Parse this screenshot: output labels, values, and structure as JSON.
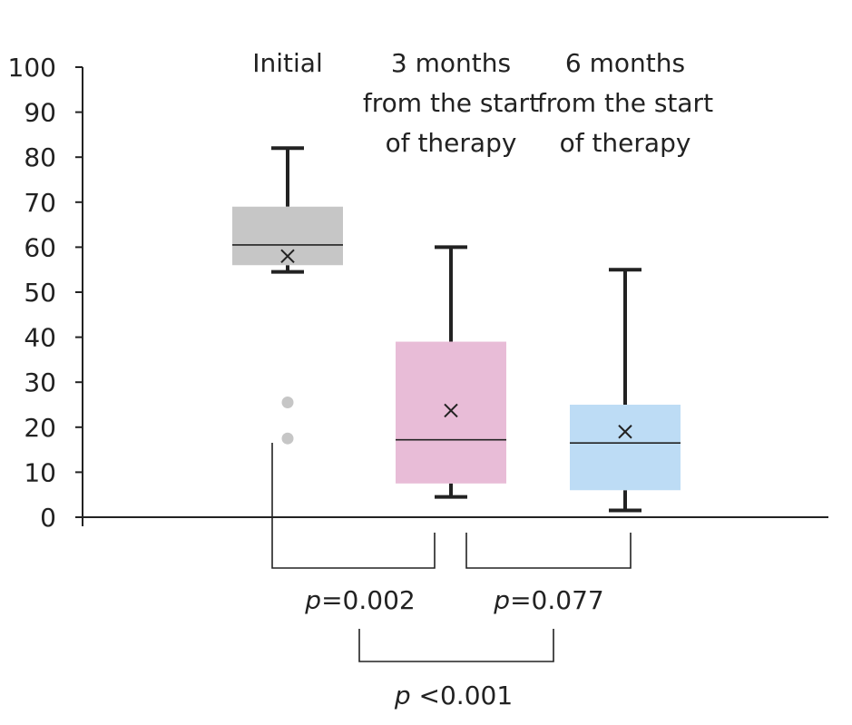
{
  "chart_data": {
    "type": "box",
    "title": "",
    "xlabel": "",
    "ylabel": "",
    "ylim": [
      0,
      100
    ],
    "yticks": [
      0,
      10,
      20,
      30,
      40,
      50,
      60,
      70,
      80,
      90,
      100
    ],
    "groups": [
      {
        "label_lines": [
          "Initial"
        ],
        "color": "#c6c6c6",
        "whisker_low": 54.5,
        "q1": 56,
        "median": 60.5,
        "mean": 58,
        "q3": 69,
        "whisker_high": 82,
        "outliers": [
          17.5,
          25.5
        ],
        "outlier_color": "#c6c6c6"
      },
      {
        "label_lines": [
          "3 months",
          "from the start",
          "of therapy"
        ],
        "color": "#e8bcd7",
        "whisker_low": 4.5,
        "q1": 7.5,
        "median": 17.2,
        "mean": 23.7,
        "q3": 39,
        "whisker_high": 60,
        "outliers": [],
        "outlier_color": "#c6c6c6"
      },
      {
        "label_lines": [
          "6 months",
          "from the start",
          "of therapy"
        ],
        "color": "#bddcf5",
        "whisker_low": 1.5,
        "q1": 6,
        "median": 16.5,
        "mean": 19,
        "q3": 25,
        "whisker_high": 55,
        "outliers": [],
        "outlier_color": "#c6c6c6"
      }
    ],
    "comparisons": [
      {
        "from": 0,
        "to": 1,
        "p_symbol": "p",
        "p_text": "=0.002"
      },
      {
        "from": 1,
        "to": 2,
        "p_symbol": "p",
        "p_text": "=0.077"
      },
      {
        "from": 0,
        "to": 2,
        "p_symbol": "p",
        "p_text": " <0.001"
      }
    ]
  }
}
